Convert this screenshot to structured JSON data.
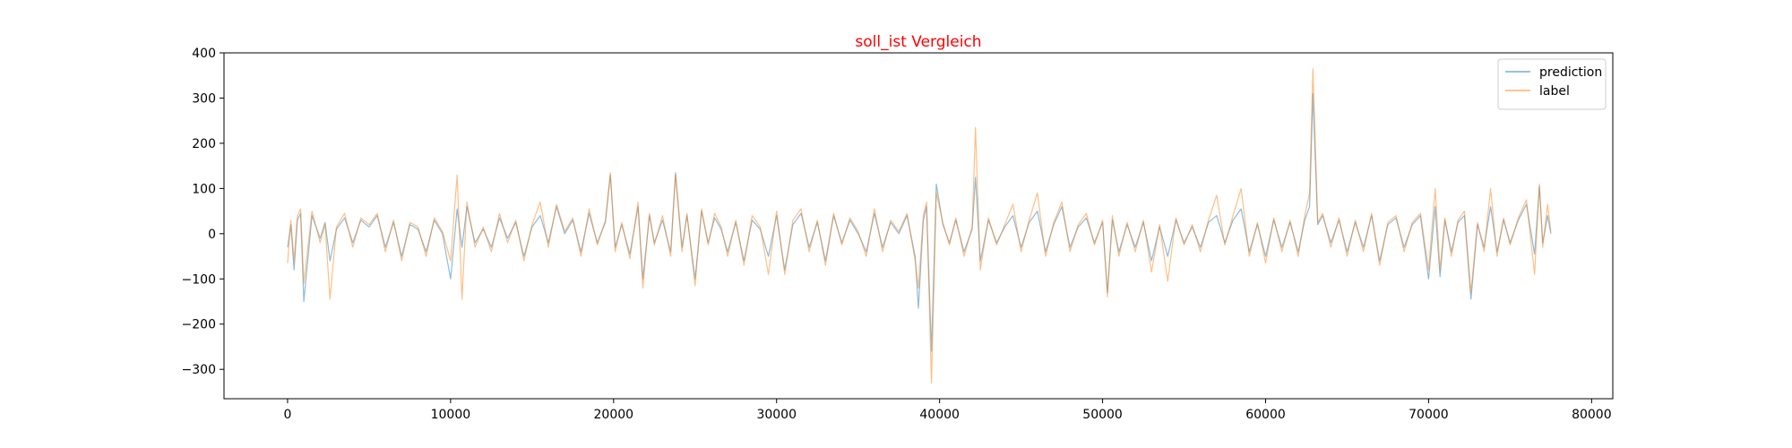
{
  "chart_data": {
    "type": "line",
    "title": "soll_ist Vergleich",
    "xlabel": "",
    "ylabel": "",
    "xlim": [
      -3900,
      81300
    ],
    "ylim": [
      -365,
      400
    ],
    "x_ticks": [
      0,
      10000,
      20000,
      30000,
      40000,
      50000,
      60000,
      70000,
      80000
    ],
    "y_ticks": [
      -300,
      -200,
      -100,
      0,
      100,
      200,
      300,
      400
    ],
    "x_tick_labels": [
      "0",
      "10000",
      "20000",
      "30000",
      "40000",
      "50000",
      "60000",
      "70000",
      "80000"
    ],
    "y_tick_labels": [
      "−300",
      "−200",
      "−100",
      "0",
      "100",
      "200",
      "300",
      "400"
    ],
    "grid": false,
    "legend_position": "top-right",
    "colors": {
      "prediction": "#1f77b4",
      "label": "#ff7f0e",
      "title": "#ff0000"
    },
    "series": [
      {
        "name": "prediction",
        "x": [
          0,
          200,
          400,
          600,
          800,
          1000,
          1500,
          2000,
          2300,
          2600,
          3000,
          3500,
          4000,
          4500,
          5000,
          5500,
          6000,
          6500,
          7000,
          7500,
          8000,
          8500,
          9000,
          9500,
          10000,
          10400,
          10700,
          11000,
          11500,
          12000,
          12500,
          13000,
          13500,
          14000,
          14500,
          15000,
          15500,
          16000,
          16500,
          17000,
          17500,
          18000,
          18500,
          19000,
          19500,
          19800,
          20100,
          20500,
          21000,
          21500,
          21800,
          22200,
          22500,
          23000,
          23500,
          23800,
          24200,
          24500,
          25000,
          25400,
          25800,
          26200,
          26600,
          27000,
          27500,
          28000,
          28500,
          29000,
          29500,
          30000,
          30500,
          31000,
          31500,
          32000,
          32500,
          33000,
          33500,
          34000,
          34500,
          35000,
          35500,
          36000,
          36500,
          37000,
          37500,
          38000,
          38500,
          38700,
          39000,
          39200,
          39500,
          39800,
          40200,
          40600,
          41000,
          41500,
          42000,
          42200,
          42500,
          43000,
          43500,
          44000,
          44500,
          45000,
          45500,
          46000,
          46500,
          47000,
          47500,
          48000,
          48500,
          49000,
          49500,
          50000,
          50300,
          50600,
          51000,
          51500,
          52000,
          52500,
          53000,
          53500,
          54000,
          54500,
          55000,
          55500,
          56000,
          56500,
          57000,
          57500,
          58000,
          58500,
          59000,
          59500,
          60000,
          60500,
          61000,
          61500,
          62000,
          62400,
          62700,
          62900,
          63200,
          63500,
          64000,
          64500,
          65000,
          65500,
          66000,
          66500,
          67000,
          67500,
          68000,
          68500,
          69000,
          69500,
          70000,
          70400,
          70700,
          71000,
          71400,
          71800,
          72200,
          72600,
          73000,
          73400,
          73800,
          74200,
          74600,
          75000,
          75500,
          76000,
          76500,
          76800,
          77000,
          77300,
          77500
        ],
        "y": [
          -30,
          20,
          -80,
          30,
          45,
          -150,
          40,
          -10,
          25,
          -60,
          10,
          35,
          -20,
          30,
          15,
          40,
          -30,
          25,
          -50,
          20,
          10,
          -40,
          30,
          0,
          -100,
          55,
          -30,
          60,
          -20,
          10,
          -30,
          35,
          -10,
          25,
          -50,
          15,
          40,
          -20,
          60,
          0,
          30,
          -40,
          45,
          -20,
          25,
          130,
          -30,
          20,
          -45,
          60,
          -100,
          40,
          -20,
          30,
          -40,
          135,
          -30,
          40,
          -100,
          50,
          -20,
          35,
          10,
          -40,
          25,
          -60,
          30,
          10,
          -50,
          40,
          -80,
          20,
          45,
          -30,
          25,
          -60,
          40,
          -20,
          30,
          0,
          -40,
          45,
          -30,
          25,
          0,
          40,
          -50,
          -165,
          30,
          60,
          -260,
          110,
          20,
          -20,
          30,
          -40,
          10,
          125,
          -60,
          30,
          -20,
          15,
          40,
          -30,
          25,
          50,
          -40,
          20,
          60,
          -30,
          15,
          35,
          -20,
          25,
          -130,
          30,
          -40,
          20,
          -30,
          25,
          -60,
          15,
          -50,
          30,
          -20,
          15,
          -30,
          25,
          40,
          -20,
          30,
          55,
          -40,
          20,
          -50,
          30,
          -30,
          25,
          -40,
          30,
          60,
          310,
          20,
          40,
          -20,
          30,
          -40,
          25,
          -30,
          40,
          -60,
          20,
          35,
          -30,
          20,
          40,
          -100,
          60,
          -95,
          30,
          -40,
          25,
          40,
          -145,
          20,
          -30,
          60,
          -40,
          30,
          -20,
          30,
          65,
          -45,
          105,
          -20,
          40,
          0
        ]
      },
      {
        "name": "label",
        "x": [
          0,
          200,
          400,
          600,
          800,
          1000,
          1500,
          2000,
          2300,
          2600,
          3000,
          3500,
          4000,
          4500,
          5000,
          5500,
          6000,
          6500,
          7000,
          7500,
          8000,
          8500,
          9000,
          9500,
          10000,
          10400,
          10700,
          11000,
          11500,
          12000,
          12500,
          13000,
          13500,
          14000,
          14500,
          15000,
          15500,
          16000,
          16500,
          17000,
          17500,
          18000,
          18500,
          19000,
          19500,
          19800,
          20100,
          20500,
          21000,
          21500,
          21800,
          22200,
          22500,
          23000,
          23500,
          23800,
          24200,
          24500,
          25000,
          25400,
          25800,
          26200,
          26600,
          27000,
          27500,
          28000,
          28500,
          29000,
          29500,
          30000,
          30500,
          31000,
          31500,
          32000,
          32500,
          33000,
          33500,
          34000,
          34500,
          35000,
          35500,
          36000,
          36500,
          37000,
          37500,
          38000,
          38500,
          38700,
          39000,
          39200,
          39500,
          39800,
          40200,
          40600,
          41000,
          41500,
          42000,
          42200,
          42500,
          43000,
          43500,
          44000,
          44500,
          45000,
          45500,
          46000,
          46500,
          47000,
          47500,
          48000,
          48500,
          49000,
          49500,
          50000,
          50300,
          50600,
          51000,
          51500,
          52000,
          52500,
          53000,
          53500,
          54000,
          54500,
          55000,
          55500,
          56000,
          56500,
          57000,
          57500,
          58000,
          58500,
          59000,
          59500,
          60000,
          60500,
          61000,
          61500,
          62000,
          62400,
          62700,
          62900,
          63200,
          63500,
          64000,
          64500,
          65000,
          65500,
          66000,
          66500,
          67000,
          67500,
          68000,
          68500,
          69000,
          69500,
          70000,
          70400,
          70700,
          71000,
          71400,
          71800,
          72200,
          72600,
          73000,
          73400,
          73800,
          74200,
          74600,
          75000,
          75500,
          76000,
          76500,
          76800,
          77000,
          77300,
          77500
        ],
        "y": [
          -65,
          30,
          -60,
          40,
          55,
          -110,
          50,
          -20,
          20,
          -145,
          15,
          45,
          -30,
          35,
          20,
          45,
          -40,
          30,
          -60,
          25,
          15,
          -50,
          35,
          5,
          -60,
          130,
          -145,
          70,
          -30,
          15,
          -40,
          45,
          -20,
          30,
          -60,
          20,
          70,
          -30,
          65,
          5,
          35,
          -50,
          55,
          -25,
          30,
          135,
          -40,
          25,
          -55,
          70,
          -120,
          45,
          -25,
          40,
          -50,
          130,
          -40,
          45,
          -115,
          55,
          -25,
          45,
          15,
          -50,
          30,
          -70,
          40,
          15,
          -90,
          50,
          -90,
          30,
          55,
          -40,
          30,
          -70,
          45,
          -25,
          35,
          5,
          -50,
          55,
          -40,
          30,
          5,
          45,
          -60,
          -120,
          40,
          70,
          -330,
          90,
          25,
          -25,
          35,
          -50,
          15,
          235,
          -80,
          35,
          -25,
          20,
          65,
          -40,
          30,
          90,
          -50,
          25,
          70,
          -40,
          20,
          45,
          -25,
          30,
          -140,
          40,
          -50,
          25,
          -40,
          30,
          -85,
          20,
          -105,
          35,
          -25,
          20,
          -40,
          30,
          85,
          -25,
          40,
          100,
          -50,
          25,
          -65,
          35,
          -40,
          30,
          -50,
          40,
          90,
          365,
          25,
          45,
          -30,
          35,
          -50,
          30,
          -40,
          45,
          -70,
          25,
          40,
          -40,
          25,
          45,
          -80,
          100,
          -80,
          35,
          -50,
          30,
          50,
          -130,
          25,
          -40,
          100,
          -50,
          35,
          -25,
          35,
          75,
          -90,
          110,
          -30,
          65,
          5
        ]
      }
    ]
  }
}
